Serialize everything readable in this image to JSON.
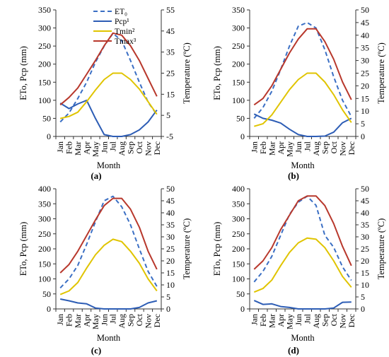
{
  "chart_data": [
    {
      "id": "a",
      "type": "line",
      "panel_label": "(a)",
      "xlabel": "Month",
      "ylabel_left": "ETo, Pcp (mm)",
      "ylabel_right": "Temperature (ºC)",
      "categories": [
        "Jan",
        "Feb",
        "Mar",
        "Apr",
        "May",
        "Jun",
        "Jul",
        "Aug",
        "Sep",
        "Oct",
        "Nov",
        "Dec"
      ],
      "ylim_left": [
        0,
        350
      ],
      "yticks_left": [
        0,
        50,
        100,
        150,
        200,
        250,
        300,
        350
      ],
      "ylim_right": [
        -5,
        55
      ],
      "yticks_right": [
        -5,
        5,
        15,
        25,
        35,
        45,
        55
      ],
      "legend": {
        "position": "top-center",
        "entries": [
          {
            "name": "ET₀",
            "series": "eto"
          },
          {
            "name": "Pcp¹",
            "series": "pcp"
          },
          {
            "name": "Tmin²",
            "series": "tmin"
          },
          {
            "name": "Tmax³",
            "series": "tmax"
          }
        ]
      },
      "series": [
        {
          "key": "eto",
          "name": "ET₀",
          "axis": "left",
          "color": "#3b6fc4",
          "dashed": true,
          "values": [
            40,
            65,
            105,
            150,
            205,
            250,
            285,
            265,
            210,
            150,
            95,
            60
          ]
        },
        {
          "key": "pcp",
          "name": "Pcp¹",
          "axis": "left",
          "color": "#2d5db5",
          "dashed": false,
          "values": [
            92,
            77,
            90,
            100,
            50,
            5,
            0,
            0,
            5,
            18,
            40,
            73
          ]
        },
        {
          "key": "tmin",
          "name": "Tmin²",
          "axis": "right",
          "color": "#e0c400",
          "dashed": false,
          "values": [
            3.5,
            4.5,
            6.5,
            11.5,
            17,
            22,
            25,
            25,
            22,
            17.5,
            11.5,
            5.5
          ]
        },
        {
          "key": "tmax",
          "name": "Tmax³",
          "axis": "right",
          "color": "#b8382c",
          "dashed": false,
          "values": [
            10,
            13.5,
            18,
            24.5,
            31,
            38,
            44,
            43,
            38,
            31,
            22.5,
            14
          ]
        }
      ]
    },
    {
      "id": "b",
      "type": "line",
      "panel_label": "(b)",
      "xlabel": "Month",
      "ylabel_left": "ETo, Pcp (mm)",
      "ylabel_right": "Temperature (ºC)",
      "categories": [
        "Jan",
        "Feb",
        "Mar",
        "Apr",
        "May",
        "Jun",
        "Jul",
        "Aug",
        "Sep",
        "Oct",
        "Nov",
        "Dec"
      ],
      "ylim_left": [
        0,
        350
      ],
      "yticks_left": [
        0,
        50,
        100,
        150,
        200,
        250,
        300,
        350
      ],
      "ylim_right": [
        0,
        50
      ],
      "yticks_right": [
        0,
        5,
        10,
        15,
        20,
        25,
        30,
        35,
        40,
        45,
        50
      ],
      "series": [
        {
          "key": "eto",
          "name": "ET₀",
          "axis": "left",
          "color": "#3b6fc4",
          "dashed": true,
          "values": [
            50,
            80,
            125,
            185,
            250,
            305,
            315,
            300,
            240,
            165,
            100,
            55
          ]
        },
        {
          "key": "pcp",
          "name": "Pcp¹",
          "axis": "left",
          "color": "#2d5db5",
          "dashed": false,
          "values": [
            62,
            50,
            45,
            37,
            20,
            5,
            0,
            0,
            1,
            12,
            38,
            50
          ]
        },
        {
          "key": "tmin",
          "name": "Tmin²",
          "axis": "right",
          "color": "#e0c400",
          "dashed": false,
          "values": [
            4,
            5,
            8.5,
            13.5,
            18.5,
            22.5,
            25,
            25,
            21.5,
            16.5,
            10.5,
            5.5
          ]
        },
        {
          "key": "tmax",
          "name": "Tmax³",
          "axis": "right",
          "color": "#b8382c",
          "dashed": false,
          "values": [
            12.5,
            15,
            20,
            26.5,
            33,
            38.5,
            42.5,
            42.5,
            37.5,
            30.5,
            21.5,
            14.5
          ]
        }
      ]
    },
    {
      "id": "c",
      "type": "line",
      "panel_label": "(c)",
      "xlabel": "Month",
      "ylabel_left": "ETo, Pcp (mm)",
      "ylabel_right": "Temperature (ºC)",
      "categories": [
        "Jan",
        "Feb",
        "Mar",
        "Apr",
        "May",
        "Jun",
        "Jul",
        "Aug",
        "Sep",
        "Oct",
        "Nov",
        "Dec"
      ],
      "ylim_left": [
        0,
        400
      ],
      "yticks_left": [
        0,
        50,
        100,
        150,
        200,
        250,
        300,
        350,
        400
      ],
      "ylim_right": [
        0,
        50
      ],
      "yticks_right": [
        0,
        5,
        10,
        15,
        20,
        25,
        30,
        35,
        40,
        45,
        50
      ],
      "series": [
        {
          "key": "eto",
          "name": "ET₀",
          "axis": "left",
          "color": "#3b6fc4",
          "dashed": true,
          "values": [
            70,
            100,
            145,
            215,
            290,
            360,
            375,
            340,
            280,
            200,
            125,
            75
          ]
        },
        {
          "key": "pcp",
          "name": "Pcp¹",
          "axis": "left",
          "color": "#2d5db5",
          "dashed": false,
          "values": [
            33,
            27,
            20,
            17,
            3,
            0,
            0,
            0,
            0,
            5,
            20,
            27
          ]
        },
        {
          "key": "tmin",
          "name": "Tmin²",
          "axis": "right",
          "color": "#e0c400",
          "dashed": false,
          "values": [
            6,
            7.5,
            11,
            17,
            22.5,
            26.5,
            29,
            28,
            24,
            19,
            12.5,
            7.5
          ]
        },
        {
          "key": "tmax",
          "name": "Tmax³",
          "axis": "right",
          "color": "#b8382c",
          "dashed": false,
          "values": [
            15,
            18.5,
            24,
            30.5,
            37,
            43,
            46,
            46,
            41.5,
            34,
            24,
            16.5
          ]
        }
      ]
    },
    {
      "id": "d",
      "type": "line",
      "panel_label": "(d)",
      "xlabel": "Month",
      "ylabel_left": "ETo, Pcp (mm)",
      "ylabel_right": "Temperature (ºC)",
      "categories": [
        "Jan",
        "Feb",
        "Mar",
        "Apr",
        "May",
        "Jun",
        "Jul",
        "Aug",
        "Sep",
        "Oct",
        "Nov",
        "Dec"
      ],
      "ylim_left": [
        0,
        400
      ],
      "yticks_left": [
        0,
        50,
        100,
        150,
        200,
        250,
        300,
        350,
        400
      ],
      "ylim_right": [
        0,
        50
      ],
      "yticks_right": [
        0,
        5,
        10,
        15,
        20,
        25,
        30,
        35,
        40,
        45,
        50
      ],
      "series": [
        {
          "key": "eto",
          "name": "ET₀",
          "axis": "left",
          "color": "#3b6fc4",
          "dashed": true,
          "values": [
            90,
            125,
            175,
            245,
            315,
            355,
            375,
            345,
            245,
            205,
            140,
            95
          ]
        },
        {
          "key": "pcp",
          "name": "Pcp¹",
          "axis": "left",
          "color": "#2d5db5",
          "dashed": false,
          "values": [
            28,
            15,
            17,
            8,
            5,
            0,
            0,
            0,
            0,
            3,
            22,
            23
          ]
        },
        {
          "key": "tmin",
          "name": "Tmin²",
          "axis": "right",
          "color": "#e0c400",
          "dashed": false,
          "values": [
            7,
            8.5,
            12,
            18,
            23.5,
            27.5,
            29.5,
            29,
            25.5,
            20,
            13.5,
            9
          ]
        },
        {
          "key": "tmax",
          "name": "Tmax³",
          "axis": "right",
          "color": "#b8382c",
          "dashed": false,
          "values": [
            16.5,
            20,
            25.5,
            33,
            39,
            45,
            47,
            47,
            43,
            35.5,
            26,
            18
          ]
        }
      ]
    }
  ]
}
